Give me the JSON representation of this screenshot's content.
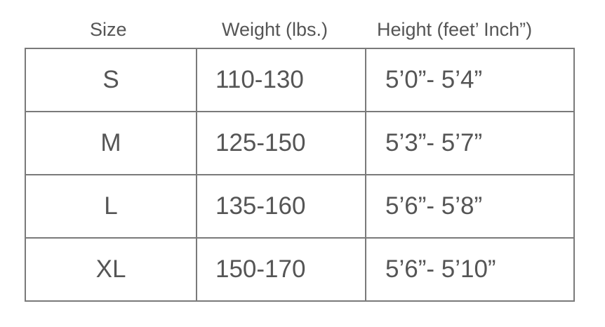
{
  "headers": {
    "size": "Size",
    "weight": "Weight (lbs.)",
    "height": "Height (feet’ Inch”)"
  },
  "rows": [
    {
      "size": "S",
      "weight": "110-130",
      "height": "5’0”- 5’4”"
    },
    {
      "size": "M",
      "weight": "125-150",
      "height": "5’3”- 5’7”"
    },
    {
      "size": "L",
      "weight": "135-160",
      "height": "5’6”- 5’8”"
    },
    {
      "size": "XL",
      "weight": "150-170",
      "height": "5’6”- 5’10”"
    }
  ]
}
